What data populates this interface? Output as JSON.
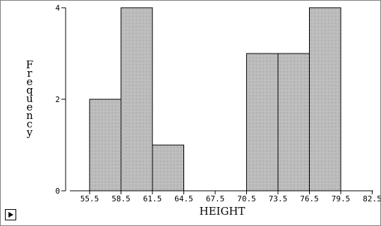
{
  "chart_data": {
    "type": "bar",
    "title": "",
    "xlabel": "HEIGHT",
    "ylabel": "Frequency",
    "bin_edges": [
      55.5,
      58.5,
      61.5,
      64.5,
      67.5,
      70.5,
      73.5,
      76.5,
      79.5,
      82.5
    ],
    "x_tick_labels": [
      "55.5",
      "58.5",
      "61.5",
      "64.5",
      "67.5",
      "70.5",
      "73.5",
      "76.5",
      "79.5",
      "82.5"
    ],
    "values": [
      2,
      4,
      1,
      0,
      0,
      3,
      3,
      4,
      0
    ],
    "y_ticks": [
      0,
      2,
      4
    ],
    "ylim": [
      0,
      4
    ],
    "xlim": [
      55.5,
      82.5
    ],
    "grid": false,
    "bar_fill": "#c8c8c8"
  },
  "controls": {
    "play_icon": "play-triangle-icon"
  }
}
